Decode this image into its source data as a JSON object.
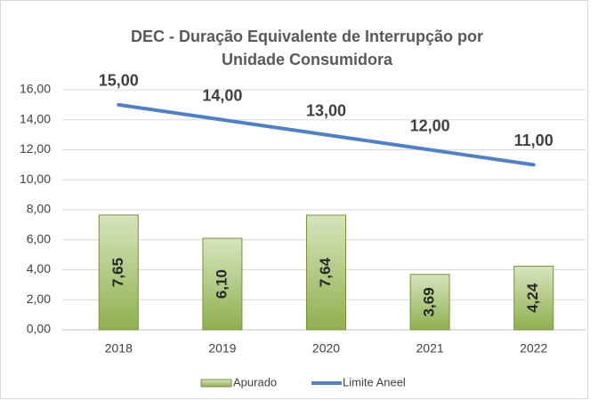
{
  "chart_data": {
    "type": "bar",
    "title": "DEC - Duração Equivalente de Interrupção por Unidade Consumidora",
    "categories": [
      "2018",
      "2019",
      "2020",
      "2021",
      "2022"
    ],
    "series": [
      {
        "name": "Apurado",
        "type": "bar",
        "color": "#8fb050",
        "values": [
          7.65,
          6.1,
          7.64,
          3.69,
          4.24
        ],
        "value_labels": [
          "7,65",
          "6,10",
          "7,64",
          "3,69",
          "4,24"
        ]
      },
      {
        "name": "Limite Aneel",
        "type": "line",
        "color": "#4f81c8",
        "values": [
          15,
          14,
          13,
          12,
          11
        ],
        "value_labels": [
          "15,00",
          "14,00",
          "13,00",
          "12,00",
          "11,00"
        ]
      }
    ],
    "ylim": [
      0,
      16
    ],
    "yticks": [
      {
        "value": 0,
        "label": "0,00"
      },
      {
        "value": 2,
        "label": "2,00"
      },
      {
        "value": 4,
        "label": "4,00"
      },
      {
        "value": 6,
        "label": "6,00"
      },
      {
        "value": 8,
        "label": "8,00"
      },
      {
        "value": 10,
        "label": "10,00"
      },
      {
        "value": 12,
        "label": "12,00"
      },
      {
        "value": 14,
        "label": "14,00"
      },
      {
        "value": 16,
        "label": "16,00"
      }
    ],
    "grid": true,
    "legend": "bottom"
  }
}
